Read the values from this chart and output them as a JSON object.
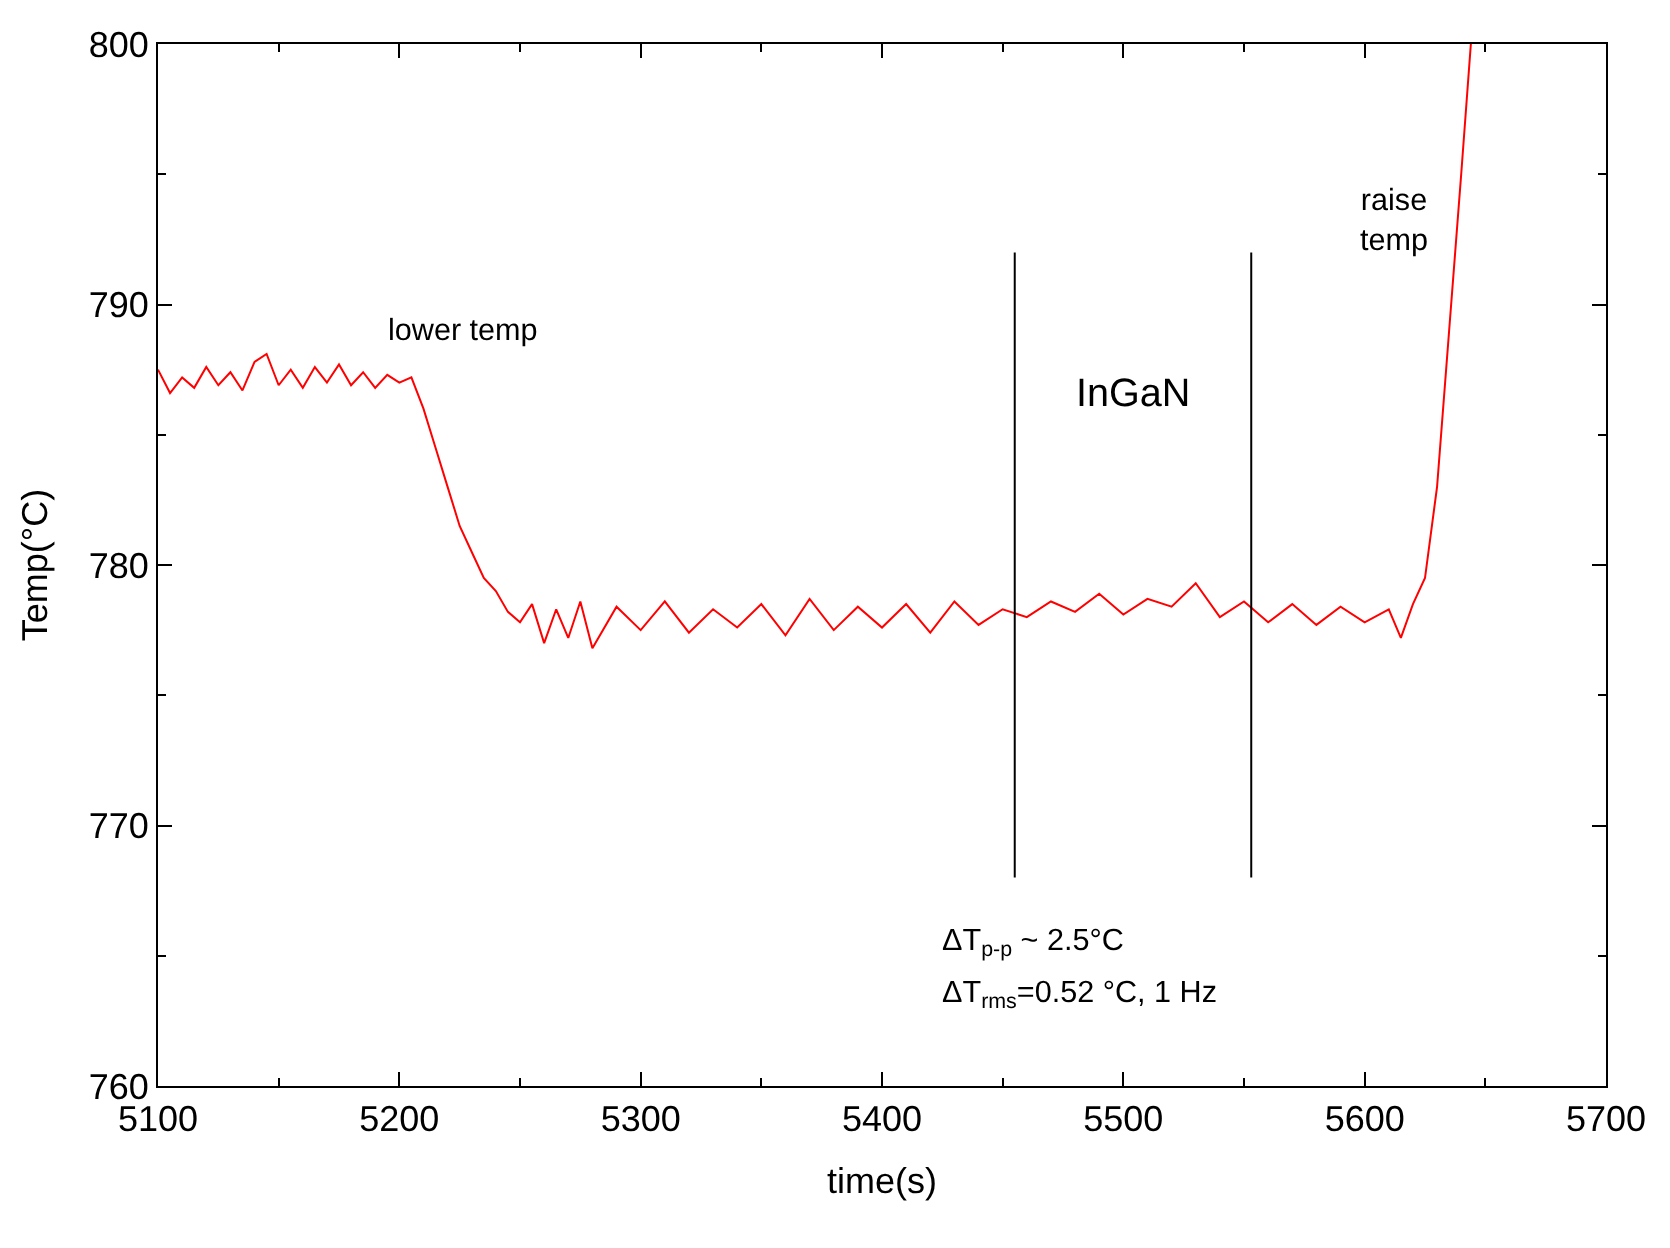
{
  "chart_data": {
    "type": "line",
    "xlabel": "time(s)",
    "ylabel": "Temp(°C)",
    "xlim": [
      5100,
      5700
    ],
    "xticks": [
      5100,
      5200,
      5300,
      5400,
      5500,
      5600,
      5700
    ],
    "ylim": [
      760,
      800
    ],
    "yticks": [
      760,
      770,
      780,
      790,
      800
    ],
    "marker": "none",
    "line_style": "solid",
    "series": [
      {
        "color": "#ff0000",
        "x": [
          5100,
          5105,
          5110,
          5115,
          5120,
          5125,
          5130,
          5135,
          5140,
          5145,
          5150,
          5155,
          5160,
          5165,
          5170,
          5175,
          5180,
          5185,
          5190,
          5195,
          5200,
          5205,
          5210,
          5215,
          5220,
          5225,
          5230,
          5235,
          5240,
          5245,
          5250,
          5255,
          5260,
          5265,
          5270,
          5275,
          5280,
          5290,
          5300,
          5310,
          5320,
          5330,
          5340,
          5350,
          5360,
          5370,
          5380,
          5390,
          5400,
          5410,
          5420,
          5430,
          5440,
          5450,
          5460,
          5470,
          5480,
          5490,
          5500,
          5510,
          5520,
          5530,
          5540,
          5550,
          5560,
          5570,
          5580,
          5590,
          5600,
          5610,
          5615,
          5620,
          5625,
          5630,
          5635,
          5640,
          5644
        ],
        "values": [
          787.5,
          786.6,
          787.2,
          786.8,
          787.6,
          786.9,
          787.4,
          786.7,
          787.8,
          788.1,
          786.9,
          787.5,
          786.8,
          787.6,
          787.0,
          787.7,
          786.9,
          787.4,
          786.8,
          787.3,
          787.0,
          787.2,
          786.0,
          784.5,
          783.0,
          781.5,
          780.5,
          779.5,
          779.0,
          778.2,
          777.8,
          778.5,
          777.0,
          778.3,
          777.2,
          778.6,
          776.8,
          778.4,
          777.5,
          778.6,
          777.4,
          778.3,
          777.6,
          778.5,
          777.3,
          778.7,
          777.5,
          778.4,
          777.6,
          778.5,
          777.4,
          778.6,
          777.7,
          778.3,
          778.0,
          778.6,
          778.2,
          778.9,
          778.1,
          778.7,
          778.4,
          779.3,
          778.0,
          778.6,
          777.8,
          778.5,
          777.7,
          778.4,
          777.8,
          778.3,
          777.2,
          778.5,
          779.5,
          783,
          789,
          795,
          800
        ]
      },
      {
        "color": "#000000",
        "x": [
          5455,
          5455
        ],
        "values": [
          768,
          792
        ]
      },
      {
        "color": "#000000",
        "x": [
          5553,
          5553
        ],
        "values": [
          768,
          792
        ]
      }
    ],
    "annotations": [
      "lower temp",
      "raise temp",
      "InGaN",
      "ΔT$_{p-p}$ ~ 2.5°C",
      "ΔT$_{rms}$=0.52 °C, 1 Hz"
    ]
  }
}
